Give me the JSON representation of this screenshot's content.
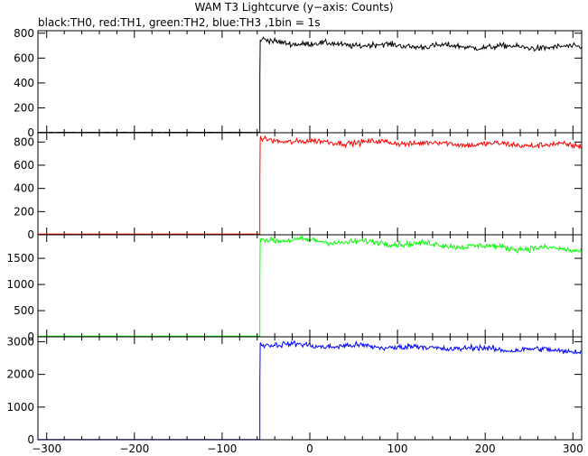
{
  "title": "WAM T3 Lightcurve (y−axis: Counts)",
  "subtitle": "black:TH0, red:TH1, green:TH2, blue:TH3 ,1bin = 1s",
  "chart_data": {
    "type": "line",
    "x_range": [
      -310,
      310
    ],
    "x_ticks": [
      -300,
      -200,
      -100,
      0,
      100,
      200,
      300
    ],
    "x_tick_labels": [
      "−300",
      "−200",
      "−100",
      "0",
      "100",
      "200",
      "300"
    ],
    "trigger_x": -57,
    "panels": [
      {
        "series": "TH0",
        "color": "#000000",
        "ylim": [
          0,
          820
        ],
        "y_ticks": [
          0,
          200,
          400,
          600,
          800
        ],
        "baseline": 3,
        "peak": 745,
        "profile": [
          [
            -57,
            745
          ],
          [
            -40,
            730
          ],
          [
            0,
            715
          ],
          [
            100,
            700
          ],
          [
            200,
            690
          ],
          [
            310,
            685
          ]
        ]
      },
      {
        "series": "TH1",
        "color": "#ff0000",
        "ylim": [
          0,
          880
        ],
        "y_ticks": [
          0,
          200,
          400,
          600,
          800
        ],
        "baseline": 5,
        "peak": 825,
        "profile": [
          [
            -57,
            825
          ],
          [
            -40,
            815
          ],
          [
            0,
            800
          ],
          [
            100,
            795
          ],
          [
            200,
            780
          ],
          [
            310,
            770
          ]
        ]
      },
      {
        "series": "TH2",
        "color": "#00ff00",
        "ylim": [
          0,
          1950
        ],
        "y_ticks": [
          0,
          500,
          1000,
          1500
        ],
        "baseline": 10,
        "peak": 1880,
        "profile": [
          [
            -57,
            1880
          ],
          [
            -40,
            1860
          ],
          [
            0,
            1830
          ],
          [
            100,
            1790
          ],
          [
            200,
            1720
          ],
          [
            310,
            1660
          ]
        ]
      },
      {
        "series": "TH3",
        "color": "#0000ff",
        "ylim": [
          0,
          3150
        ],
        "y_ticks": [
          0,
          1000,
          2000,
          3000
        ],
        "baseline": 5,
        "peak": 2950,
        "profile": [
          [
            -57,
            2950
          ],
          [
            -40,
            2920
          ],
          [
            0,
            2880
          ],
          [
            100,
            2840
          ],
          [
            200,
            2780
          ],
          [
            310,
            2720
          ]
        ]
      }
    ]
  }
}
